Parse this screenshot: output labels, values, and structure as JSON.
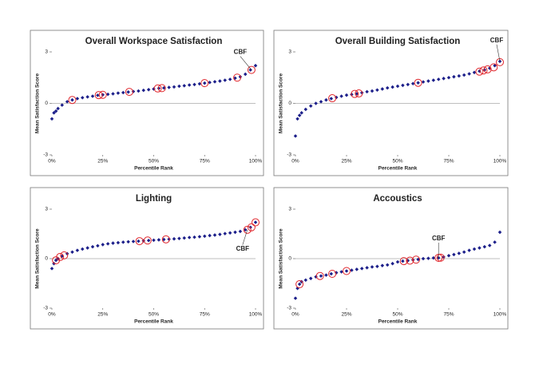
{
  "chart_data": [
    {
      "type": "scatter",
      "title": "Overall Workspace Satisfaction",
      "xlabel": "Percentile Rank",
      "ylabel": "Mean Satisfaction Score",
      "xlim": [
        0,
        100
      ],
      "ylim": [
        -3,
        3
      ],
      "xticks": [
        {
          "value": 0,
          "label": "0%"
        },
        {
          "value": 25,
          "label": "25%"
        },
        {
          "value": 50,
          "label": "50%"
        },
        {
          "value": 75,
          "label": "75%"
        },
        {
          "value": 100,
          "label": "100%"
        }
      ],
      "yticks": [
        -3,
        0,
        3
      ],
      "series": [
        {
          "color": "#1c1f8a",
          "marker": "dot",
          "x": [
            0,
            1,
            2,
            3,
            5,
            7.5,
            10,
            12.5,
            15,
            17.5,
            20,
            22.5,
            25,
            27.5,
            30,
            32.5,
            35,
            37.5,
            40,
            42.5,
            45,
            47.5,
            50,
            52.5,
            55,
            57.5,
            60,
            62.5,
            65,
            67.5,
            70,
            72.5,
            75,
            77.5,
            80,
            82.5,
            85,
            87.5,
            90,
            92.5,
            95,
            97.5,
            100
          ],
          "values": [
            -0.9,
            -0.55,
            -0.45,
            -0.3,
            -0.1,
            0.1,
            0.2,
            0.28,
            0.33,
            0.38,
            0.42,
            0.47,
            0.5,
            0.53,
            0.56,
            0.6,
            0.63,
            0.66,
            0.69,
            0.72,
            0.76,
            0.8,
            0.84,
            0.88,
            0.9,
            0.93,
            0.96,
            1.0,
            1.03,
            1.07,
            1.1,
            1.14,
            1.18,
            1.22,
            1.26,
            1.3,
            1.35,
            1.4,
            1.47,
            1.55,
            1.7,
            1.95,
            2.2
          ]
        },
        {
          "color": "#e0252b",
          "marker": "ring",
          "x": [
            10,
            23,
            25,
            38,
            52,
            54,
            75,
            91,
            98
          ],
          "values": [
            0.2,
            0.48,
            0.5,
            0.67,
            0.87,
            0.89,
            1.18,
            1.5,
            1.95
          ]
        }
      ],
      "annotation": {
        "text": "CBF",
        "x": 98,
        "y": 1.95
      }
    },
    {
      "type": "scatter",
      "title": "Overall Building Satisfaction",
      "xlabel": "Percentile Rank",
      "ylabel": "Mean Satisfaction Score",
      "xlim": [
        0,
        100
      ],
      "ylim": [
        -3,
        3
      ],
      "xticks": [
        {
          "value": 0,
          "label": "0%"
        },
        {
          "value": 25,
          "label": "25%"
        },
        {
          "value": 50,
          "label": "50%"
        },
        {
          "value": 75,
          "label": "75%"
        },
        {
          "value": 100,
          "label": "100%"
        }
      ],
      "yticks": [
        -3,
        0,
        3
      ],
      "series": [
        {
          "color": "#1c1f8a",
          "marker": "dot",
          "x": [
            0,
            1,
            2,
            3,
            5,
            7.5,
            10,
            12.5,
            15,
            17.5,
            20,
            22.5,
            25,
            27.5,
            30,
            32.5,
            35,
            37.5,
            40,
            42.5,
            45,
            47.5,
            50,
            52.5,
            55,
            57.5,
            60,
            62.5,
            65,
            67.5,
            70,
            72.5,
            75,
            77.5,
            80,
            82.5,
            85,
            87.5,
            90,
            92.5,
            95,
            97.5,
            100
          ],
          "values": [
            -1.9,
            -0.9,
            -0.7,
            -0.55,
            -0.35,
            -0.15,
            0,
            0.1,
            0.2,
            0.28,
            0.35,
            0.42,
            0.48,
            0.52,
            0.56,
            0.62,
            0.68,
            0.72,
            0.78,
            0.84,
            0.9,
            0.95,
            1.0,
            1.05,
            1.1,
            1.15,
            1.2,
            1.25,
            1.3,
            1.35,
            1.4,
            1.45,
            1.5,
            1.55,
            1.6,
            1.65,
            1.72,
            1.8,
            1.88,
            1.95,
            2.05,
            2.2,
            2.45
          ]
        },
        {
          "color": "#e0252b",
          "marker": "ring",
          "x": [
            18,
            29,
            31,
            60,
            90,
            92,
            94,
            97,
            100
          ],
          "values": [
            0.3,
            0.55,
            0.58,
            1.2,
            1.85,
            1.92,
            1.98,
            2.1,
            2.4
          ]
        }
      ],
      "annotation": {
        "text": "CBF",
        "x": 100,
        "y": 2.45
      }
    },
    {
      "type": "scatter",
      "title": "Lighting",
      "xlabel": "Percentile Rank",
      "ylabel": "Mean Satisfaction Score",
      "xlim": [
        0,
        100
      ],
      "ylim": [
        -3,
        3
      ],
      "xticks": [
        {
          "value": 0,
          "label": "0%"
        },
        {
          "value": 25,
          "label": "25%"
        },
        {
          "value": 50,
          "label": "50%"
        },
        {
          "value": 75,
          "label": "75%"
        },
        {
          "value": 100,
          "label": "100%"
        }
      ],
      "yticks": [
        -3,
        0,
        3
      ],
      "series": [
        {
          "color": "#1c1f8a",
          "marker": "dot",
          "x": [
            0,
            1,
            2,
            3,
            5,
            7.5,
            10,
            12.5,
            15,
            17.5,
            20,
            22.5,
            25,
            27.5,
            30,
            32.5,
            35,
            37.5,
            40,
            42.5,
            45,
            47.5,
            50,
            52.5,
            55,
            57.5,
            60,
            62.5,
            65,
            67.5,
            70,
            72.5,
            75,
            77.5,
            80,
            82.5,
            85,
            87.5,
            90,
            92.5,
            95,
            97.5,
            100
          ],
          "values": [
            -0.6,
            -0.3,
            -0.1,
            0,
            0.15,
            0.3,
            0.4,
            0.5,
            0.58,
            0.65,
            0.72,
            0.78,
            0.85,
            0.9,
            0.94,
            0.97,
            1.0,
            1.02,
            1.04,
            1.06,
            1.08,
            1.1,
            1.12,
            1.14,
            1.16,
            1.18,
            1.2,
            1.22,
            1.25,
            1.28,
            1.3,
            1.33,
            1.36,
            1.4,
            1.43,
            1.47,
            1.52,
            1.56,
            1.6,
            1.65,
            1.75,
            1.9,
            2.2
          ]
        },
        {
          "color": "#e0252b",
          "marker": "ring",
          "x": [
            2,
            4,
            6,
            43,
            47,
            56,
            96,
            98,
            100
          ],
          "values": [
            -0.1,
            0.1,
            0.2,
            1.06,
            1.1,
            1.17,
            1.75,
            1.9,
            2.2
          ]
        }
      ],
      "annotation": {
        "text": "CBF",
        "x": 96,
        "y": 1.75
      }
    },
    {
      "type": "scatter",
      "title": "Accoustics",
      "xlabel": "Percentile Rank",
      "ylabel": "Mean Satisfaction Score",
      "xlim": [
        0,
        100
      ],
      "ylim": [
        -3,
        3
      ],
      "xticks": [
        {
          "value": 0,
          "label": "0%"
        },
        {
          "value": 25,
          "label": "25%"
        },
        {
          "value": 50,
          "label": "50%"
        },
        {
          "value": 75,
          "label": "75%"
        },
        {
          "value": 100,
          "label": "100%"
        }
      ],
      "yticks": [
        -3,
        0,
        3
      ],
      "series": [
        {
          "color": "#1c1f8a",
          "marker": "dot",
          "x": [
            0,
            1,
            2,
            3,
            5,
            7.5,
            10,
            12.5,
            15,
            17.5,
            20,
            22.5,
            25,
            27.5,
            30,
            32.5,
            35,
            37.5,
            40,
            42.5,
            45,
            47.5,
            50,
            52.5,
            55,
            57.5,
            60,
            62.5,
            65,
            67.5,
            70,
            72.5,
            75,
            77.5,
            80,
            82.5,
            85,
            87.5,
            90,
            92.5,
            95,
            97.5,
            100
          ],
          "values": [
            -2.4,
            -1.8,
            -1.55,
            -1.4,
            -1.3,
            -1.2,
            -1.1,
            -1.05,
            -1.0,
            -0.92,
            -0.85,
            -0.8,
            -0.75,
            -0.7,
            -0.65,
            -0.6,
            -0.55,
            -0.5,
            -0.47,
            -0.42,
            -0.38,
            -0.3,
            -0.2,
            -0.15,
            -0.12,
            -0.08,
            -0.05,
            0,
            0.02,
            0.04,
            0.05,
            0.1,
            0.18,
            0.25,
            0.32,
            0.4,
            0.5,
            0.58,
            0.65,
            0.72,
            0.8,
            1.0,
            1.6
          ]
        },
        {
          "color": "#e0252b",
          "marker": "ring",
          "x": [
            2,
            12,
            18,
            25,
            53,
            56,
            59,
            70,
            71
          ],
          "values": [
            -1.55,
            -1.05,
            -0.92,
            -0.75,
            -0.15,
            -0.12,
            -0.06,
            0.05,
            0.06
          ]
        }
      ],
      "annotation": {
        "text": "CBF",
        "x": 70,
        "y": 0.05
      }
    }
  ]
}
